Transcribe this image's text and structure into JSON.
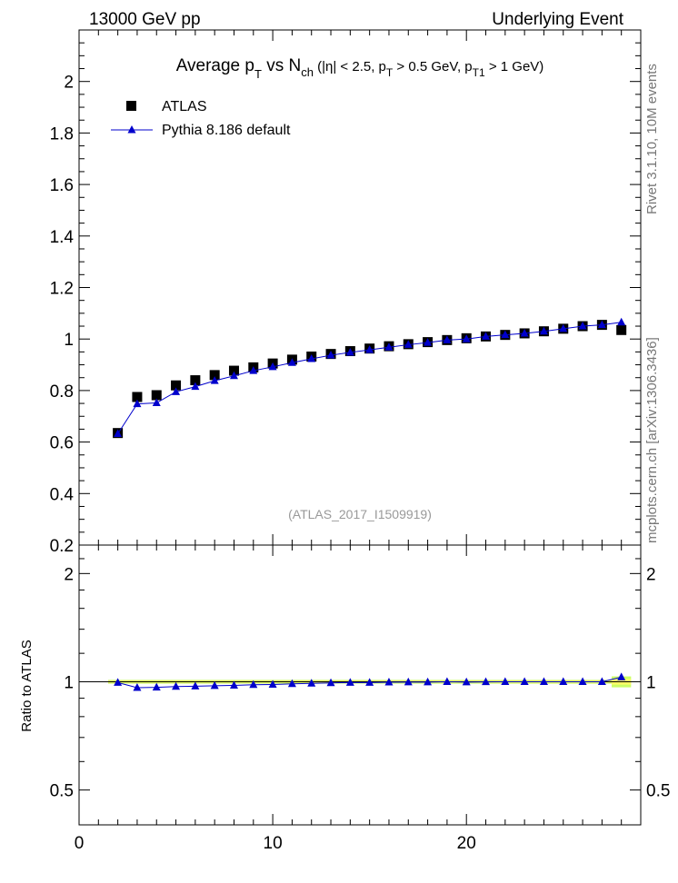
{
  "header": {
    "left": "13000 GeV pp",
    "right": "Underlying Event"
  },
  "side": {
    "rivet": "Rivet 3.1.10, 10M events",
    "mcplots": "mcplots.cern.ch [arXiv:1306.3436]"
  },
  "title_parts": {
    "t1": "Average p",
    "t1sub": "T",
    "t2": " vs N",
    "t2sub": "ch",
    "t3": " (|η| < 2.5, p",
    "t3sub": "T",
    "t4": " > 0.5 GeV, p",
    "t4sub": "T1",
    "t5": " > 1 GeV)"
  },
  "watermark": "(ATLAS_2017_I1509919)",
  "chart_data": {
    "type": "scatter",
    "title": "Average p_T vs N_ch (|η| < 2.5, p_T > 0.5 GeV, p_T1 > 1 GeV)",
    "xlim": [
      0,
      29
    ],
    "main": {
      "ylim": [
        0.2,
        2.2
      ],
      "yticks": [
        0.2,
        0.4,
        0.6,
        0.8,
        1.0,
        1.2,
        1.4,
        1.6,
        1.8,
        2.0
      ],
      "ytick_labels": [
        "0.2",
        "0.4",
        "0.6",
        "0.8",
        "1",
        "1.2",
        "1.4",
        "1.6",
        "1.8",
        "2"
      ]
    },
    "ratio": {
      "ylabel": "Ratio to ATLAS",
      "ylim": [
        0.4,
        2.4
      ],
      "log": true,
      "yticks": [
        0.5,
        1,
        2
      ],
      "ytick_labels": [
        "0.5",
        "1",
        "2"
      ]
    },
    "xticks": [
      0,
      10,
      20
    ],
    "xtick_labels": [
      "0",
      "10",
      "20"
    ],
    "x": [
      2,
      3,
      4,
      5,
      6,
      7,
      8,
      9,
      10,
      11,
      12,
      13,
      14,
      15,
      16,
      17,
      18,
      19,
      20,
      21,
      22,
      23,
      24,
      25,
      26,
      27,
      28
    ],
    "series": [
      {
        "name": "ATLAS",
        "marker": "square",
        "color": "#000000",
        "values": [
          0.635,
          0.775,
          0.782,
          0.82,
          0.84,
          0.86,
          0.877,
          0.89,
          0.905,
          0.92,
          0.932,
          0.942,
          0.953,
          0.963,
          0.972,
          0.98,
          0.988,
          0.996,
          1.003,
          1.01,
          1.016,
          1.022,
          1.03,
          1.04,
          1.05,
          1.055,
          1.035
        ]
      },
      {
        "name": "Pythia 8.186 default",
        "marker": "triangle",
        "color": "#0000cc",
        "values": [
          0.632,
          0.748,
          0.752,
          0.795,
          0.815,
          0.838,
          0.857,
          0.877,
          0.892,
          0.908,
          0.923,
          0.937,
          0.948,
          0.958,
          0.968,
          0.978,
          0.986,
          0.996,
          1.0,
          1.01,
          1.016,
          1.022,
          1.03,
          1.04,
          1.05,
          1.055,
          1.065
        ],
        "ratio": [
          0.995,
          0.963,
          0.965,
          0.97,
          0.972,
          0.975,
          0.977,
          0.981,
          0.983,
          0.987,
          0.99,
          0.993,
          0.995,
          0.995,
          0.997,
          0.998,
          0.998,
          1.0,
          0.998,
          0.999,
          1.0,
          1.0,
          1.0,
          1.0,
          1.0,
          1.0,
          1.03
        ]
      }
    ],
    "legend": "top-left"
  },
  "colors": {
    "atlas": "#000000",
    "pythia": "#0000cc",
    "band_outer": "#ccff66",
    "band_inner": "#ffff66"
  }
}
